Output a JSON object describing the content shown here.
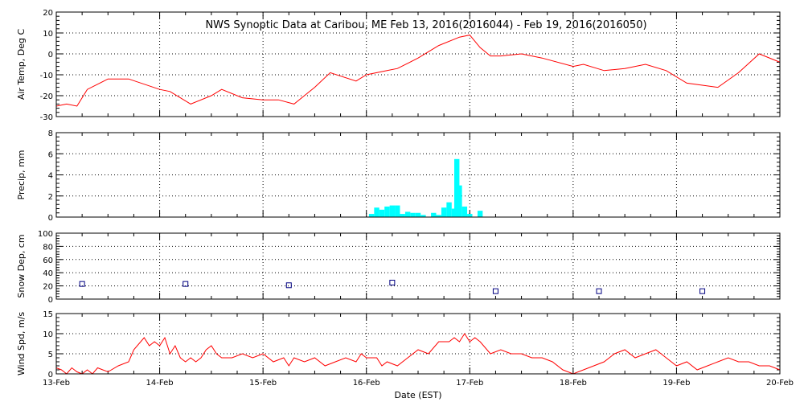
{
  "chart_data": {
    "title": "NWS Synoptic Data at Caribou, ME    Feb 13, 2016(2016044) - Feb 19, 2016(2016050)",
    "xlabel": "Date (EST)",
    "x_tick_labels": [
      "13-Feb",
      "14-Feb",
      "15-Feb",
      "16-Feb",
      "17-Feb",
      "18-Feb",
      "19-Feb",
      "20-Feb"
    ],
    "x_range_days": [
      0,
      7
    ],
    "panels": [
      {
        "key": "airtemp",
        "type": "line",
        "ylabel": "Air Temp, Deg C",
        "ylim": [
          -30,
          20
        ],
        "yticks": [
          -30,
          -20,
          -10,
          0,
          10,
          20
        ],
        "color": "#ff0000",
        "x": [
          0,
          0.1,
          0.2,
          0.3,
          0.5,
          0.7,
          1.0,
          1.1,
          1.3,
          1.5,
          1.6,
          1.8,
          2.0,
          2.15,
          2.3,
          2.5,
          2.65,
          2.9,
          3.0,
          3.2,
          3.3,
          3.5,
          3.7,
          3.9,
          4.0,
          4.1,
          4.2,
          4.3,
          4.5,
          4.7,
          5.0,
          5.1,
          5.3,
          5.5,
          5.7,
          5.9,
          6.1,
          6.25,
          6.4,
          6.6,
          6.8,
          7.0
        ],
        "y": [
          -25,
          -24,
          -25,
          -17,
          -12,
          -12,
          -17,
          -18,
          -24,
          -20,
          -17,
          -21,
          -22,
          -22,
          -24,
          -16,
          -9,
          -13,
          -10,
          -8,
          -7,
          -2,
          4,
          8,
          9,
          3,
          -1,
          -1,
          0,
          -2,
          -6,
          -5,
          -8,
          -7,
          -5,
          -8,
          -14,
          -15,
          -16,
          -9,
          0,
          -4
        ]
      },
      {
        "key": "precip",
        "type": "bar",
        "ylabel": "Precip, mm",
        "ylim": [
          0,
          8
        ],
        "yticks": [
          0,
          2,
          4,
          6,
          8
        ],
        "color": "#00ffff",
        "x": [
          3.05,
          3.1,
          3.15,
          3.2,
          3.25,
          3.3,
          3.35,
          3.4,
          3.45,
          3.5,
          3.55,
          3.6,
          3.65,
          3.7,
          3.75,
          3.8,
          3.85,
          3.875,
          3.9,
          3.95,
          4.0,
          4.05,
          4.1
        ],
        "values": [
          0.3,
          0.9,
          0.7,
          1.0,
          1.1,
          1.1,
          0.3,
          0.5,
          0.4,
          0.4,
          0.2,
          0.0,
          0.4,
          0.2,
          0.9,
          1.4,
          0.8,
          5.5,
          3.0,
          1.0,
          0.3,
          0.0,
          0.6
        ]
      },
      {
        "key": "snowdep",
        "type": "scatter",
        "ylabel": "Snow Dep, cm",
        "ylim": [
          0,
          100
        ],
        "yticks": [
          0,
          20,
          40,
          60,
          80,
          100
        ],
        "color": "#000080",
        "x": [
          0.25,
          1.25,
          2.25,
          3.25,
          4.25,
          5.25,
          6.25
        ],
        "values": [
          23,
          23,
          21,
          25,
          12,
          12,
          12
        ]
      },
      {
        "key": "wind",
        "type": "line",
        "ylabel": "Wind Spd, m/s",
        "ylim": [
          0,
          15
        ],
        "yticks": [
          0,
          5,
          10,
          15
        ],
        "color": "#ff0000",
        "x": [
          0,
          0.05,
          0.1,
          0.15,
          0.2,
          0.25,
          0.3,
          0.35,
          0.4,
          0.5,
          0.6,
          0.7,
          0.75,
          0.85,
          0.9,
          0.95,
          1.0,
          1.05,
          1.1,
          1.15,
          1.2,
          1.25,
          1.3,
          1.35,
          1.4,
          1.45,
          1.5,
          1.55,
          1.6,
          1.7,
          1.8,
          1.9,
          2.0,
          2.1,
          2.2,
          2.25,
          2.3,
          2.4,
          2.5,
          2.6,
          2.7,
          2.8,
          2.9,
          2.95,
          3.0,
          3.1,
          3.15,
          3.2,
          3.3,
          3.4,
          3.5,
          3.6,
          3.7,
          3.8,
          3.85,
          3.9,
          3.95,
          4.0,
          4.05,
          4.1,
          4.2,
          4.3,
          4.4,
          4.5,
          4.6,
          4.7,
          4.8,
          4.9,
          5.0,
          5.1,
          5.2,
          5.3,
          5.4,
          5.5,
          5.6,
          5.7,
          5.8,
          5.9,
          6.0,
          6.1,
          6.2,
          6.3,
          6.4,
          6.5,
          6.6,
          6.7,
          6.8,
          6.9,
          7.0
        ],
        "values": [
          1.5,
          1,
          0,
          1.5,
          0.5,
          0,
          1,
          0,
          1.5,
          0.5,
          2,
          3,
          6,
          9,
          7,
          8,
          7,
          9,
          5,
          7,
          4,
          3,
          4,
          3,
          4,
          6,
          7,
          5,
          4,
          4,
          5,
          4,
          5,
          3,
          4,
          2,
          4,
          3,
          4,
          2,
          3,
          4,
          3,
          5,
          4,
          4,
          2,
          3,
          2,
          4,
          6,
          5,
          8,
          8,
          9,
          8,
          10,
          8,
          9,
          8,
          5,
          6,
          5,
          5,
          4,
          4,
          3,
          1,
          0,
          1,
          2,
          3,
          5,
          6,
          4,
          5,
          6,
          4,
          2,
          3,
          1,
          2,
          3,
          4,
          3,
          3,
          2,
          2,
          1
        ]
      }
    ]
  }
}
